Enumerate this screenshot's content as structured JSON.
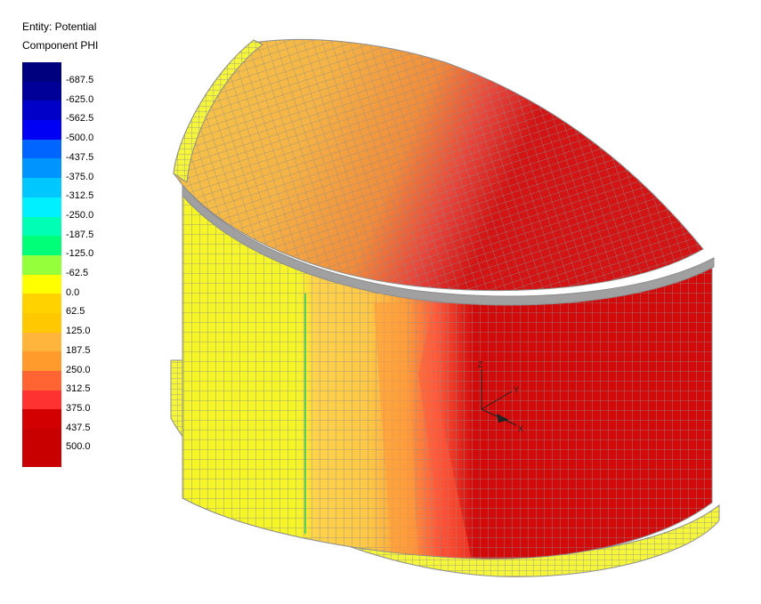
{
  "legend": {
    "entity_line": "Entity: Potential",
    "component_line": "Component PHI",
    "levels": [
      {
        "label": "-687.5",
        "color": "#00007f"
      },
      {
        "label": "-625.0",
        "color": "#000099"
      },
      {
        "label": "-562.5",
        "color": "#0000c8"
      },
      {
        "label": "-500.0",
        "color": "#0000f5"
      },
      {
        "label": "-437.5",
        "color": "#0064ff"
      },
      {
        "label": "-375.0",
        "color": "#0094ff"
      },
      {
        "label": "-312.5",
        "color": "#00c8ff"
      },
      {
        "label": "-250.0",
        "color": "#00f0ff"
      },
      {
        "label": "-187.5",
        "color": "#00ffb4"
      },
      {
        "label": "-125.0",
        "color": "#00ff78"
      },
      {
        "label": "-62.5",
        "color": "#96ff3c"
      },
      {
        "label": "0.0",
        "color": "#ffff00"
      },
      {
        "label": "62.5",
        "color": "#ffd200"
      },
      {
        "label": "125.0",
        "color": "#ffc800"
      },
      {
        "label": "187.5",
        "color": "#ffb43c"
      },
      {
        "label": "250.0",
        "color": "#ff9b2d"
      },
      {
        "label": "312.5",
        "color": "#ff6432"
      },
      {
        "label": "375.0",
        "color": "#ff3232"
      },
      {
        "label": "437.5",
        "color": "#d20000"
      },
      {
        "label": "500.0",
        "color": ""
      }
    ]
  },
  "triad": {
    "z_label": "Z",
    "y_label": "Y",
    "x_label": "X"
  },
  "colors": {
    "mesh_line": "#8c8c8c",
    "rim_band": "#a0a0a0",
    "base_ring": "#f5f53c",
    "wall_yellow": "#f5f528",
    "wall_gold": "#ffc846",
    "wall_orange": "#ff9b3c",
    "wall_red": "#d20a0a",
    "dome_orange": "#f5b446",
    "dome_red": "#d21414"
  }
}
